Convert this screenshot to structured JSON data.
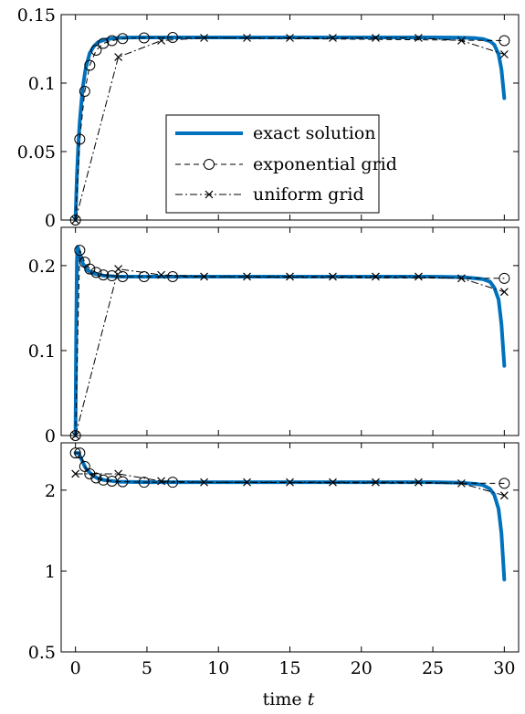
{
  "chart_data": [
    {
      "type": "line",
      "xlabel": "time",
      "xlabel_var": "t",
      "xlim": [
        -1,
        31
      ],
      "ylim": [
        0,
        0.15
      ],
      "y_scale": "linear",
      "xticks": [
        "0",
        "5",
        "10",
        "15",
        "20",
        "25",
        "30"
      ],
      "yticks": [
        {
          "v": 0,
          "label": "0"
        },
        {
          "v": 0.05,
          "label": "0.05"
        },
        {
          "v": 0.1,
          "label": "0.1"
        },
        {
          "v": 0.15,
          "label": "0.15"
        }
      ],
      "legend": {
        "placement": "center-left",
        "entries": [
          "exact solution",
          "exponential grid",
          "uniform grid"
        ]
      },
      "series": [
        {
          "name": "exact solution",
          "color": "#0072bd",
          "x": [
            0,
            0.1,
            0.2,
            0.3,
            0.5,
            0.7,
            1.0,
            1.3,
            1.6,
            2.0,
            2.5,
            3.0,
            4.0,
            5.0,
            7.0,
            10,
            15,
            20,
            25,
            27,
            28,
            28.5,
            29,
            29.3,
            29.6,
            29.8,
            30
          ],
          "y": [
            0,
            0.032,
            0.055,
            0.072,
            0.096,
            0.11,
            0.122,
            0.127,
            0.13,
            0.1315,
            0.1325,
            0.133,
            0.1333,
            0.1333,
            0.1333,
            0.1333,
            0.1333,
            0.1333,
            0.1333,
            0.1332,
            0.1328,
            0.1322,
            0.1305,
            0.128,
            0.121,
            0.11,
            0.089
          ]
        },
        {
          "name": "exponential grid",
          "x": [
            0,
            0.3,
            0.65,
            1.0,
            1.45,
            1.95,
            2.55,
            3.3,
            4.8,
            6.8,
            30
          ],
          "y": [
            0,
            0.059,
            0.094,
            0.113,
            0.124,
            0.129,
            0.131,
            0.1325,
            0.133,
            0.1333,
            0.131
          ]
        },
        {
          "name": "uniform grid",
          "x": [
            0,
            3,
            6,
            9,
            12,
            15,
            18,
            21,
            24,
            27,
            30
          ],
          "y": [
            0,
            0.119,
            0.131,
            0.133,
            0.133,
            0.133,
            0.133,
            0.133,
            0.133,
            0.131,
            0.121
          ]
        }
      ]
    },
    {
      "type": "line",
      "xlim": [
        -1,
        31
      ],
      "ylim": [
        0,
        0.245
      ],
      "y_scale": "linear",
      "yticks": [
        {
          "v": 0,
          "label": "0"
        },
        {
          "v": 0.1,
          "label": "0.1"
        },
        {
          "v": 0.2,
          "label": "0.2"
        }
      ],
      "series": [
        {
          "name": "exact solution",
          "color": "#0072bd",
          "x": [
            0,
            0.05,
            0.1,
            0.15,
            0.2,
            0.3,
            0.5,
            0.8,
            1.2,
            2.0,
            3.0,
            5.0,
            10,
            15,
            20,
            25,
            27,
            28,
            28.5,
            29,
            29.3,
            29.6,
            29.8,
            30
          ],
          "y": [
            0,
            0.12,
            0.205,
            0.222,
            0.22,
            0.214,
            0.203,
            0.195,
            0.191,
            0.188,
            0.187,
            0.187,
            0.187,
            0.187,
            0.187,
            0.187,
            0.1865,
            0.185,
            0.184,
            0.181,
            0.174,
            0.16,
            0.131,
            0.082
          ]
        },
        {
          "name": "exponential grid",
          "x": [
            0,
            0.3,
            0.65,
            1.0,
            1.45,
            1.95,
            2.55,
            3.3,
            4.8,
            6.8,
            30
          ],
          "y": [
            0,
            0.218,
            0.204,
            0.196,
            0.192,
            0.189,
            0.188,
            0.187,
            0.187,
            0.187,
            0.185
          ]
        },
        {
          "name": "uniform grid",
          "x": [
            0,
            3,
            6,
            9,
            12,
            15,
            18,
            21,
            24,
            27,
            30
          ],
          "y": [
            0,
            0.196,
            0.189,
            0.187,
            0.187,
            0.187,
            0.187,
            0.187,
            0.187,
            0.185,
            0.169
          ]
        }
      ]
    },
    {
      "type": "line",
      "xlim": [
        -1,
        31
      ],
      "ylim": [
        0.5,
        3.0
      ],
      "y_scale": "log",
      "yticks": [
        {
          "v": 0.5,
          "label": "0.5"
        },
        {
          "v": 1,
          "label": "1"
        },
        {
          "v": 2,
          "label": "2"
        }
      ],
      "series": [
        {
          "name": "exact solution",
          "color": "#0072bd",
          "x": [
            0,
            0.2,
            0.4,
            0.7,
            1.0,
            1.5,
            2.0,
            3.0,
            5.0,
            10,
            15,
            20,
            25,
            27,
            28,
            28.5,
            29,
            29.3,
            29.6,
            29.8,
            30
          ],
          "y": [
            2.75,
            2.75,
            2.62,
            2.42,
            2.32,
            2.22,
            2.18,
            2.15,
            2.14,
            2.14,
            2.14,
            2.14,
            2.14,
            2.13,
            2.11,
            2.09,
            2.02,
            1.92,
            1.7,
            1.38,
            0.93
          ]
        },
        {
          "name": "exponential grid",
          "x": [
            0,
            0.3,
            0.65,
            1.0,
            1.45,
            1.95,
            2.55,
            3.3,
            4.8,
            6.8,
            30
          ],
          "y": [
            2.75,
            2.75,
            2.45,
            2.3,
            2.22,
            2.18,
            2.16,
            2.15,
            2.14,
            2.14,
            2.12
          ]
        },
        {
          "name": "uniform grid",
          "x": [
            0,
            3,
            6,
            9,
            12,
            15,
            18,
            21,
            24,
            27,
            30
          ],
          "y": [
            2.3,
            2.3,
            2.16,
            2.14,
            2.14,
            2.14,
            2.14,
            2.14,
            2.14,
            2.12,
            1.91
          ]
        }
      ]
    }
  ]
}
